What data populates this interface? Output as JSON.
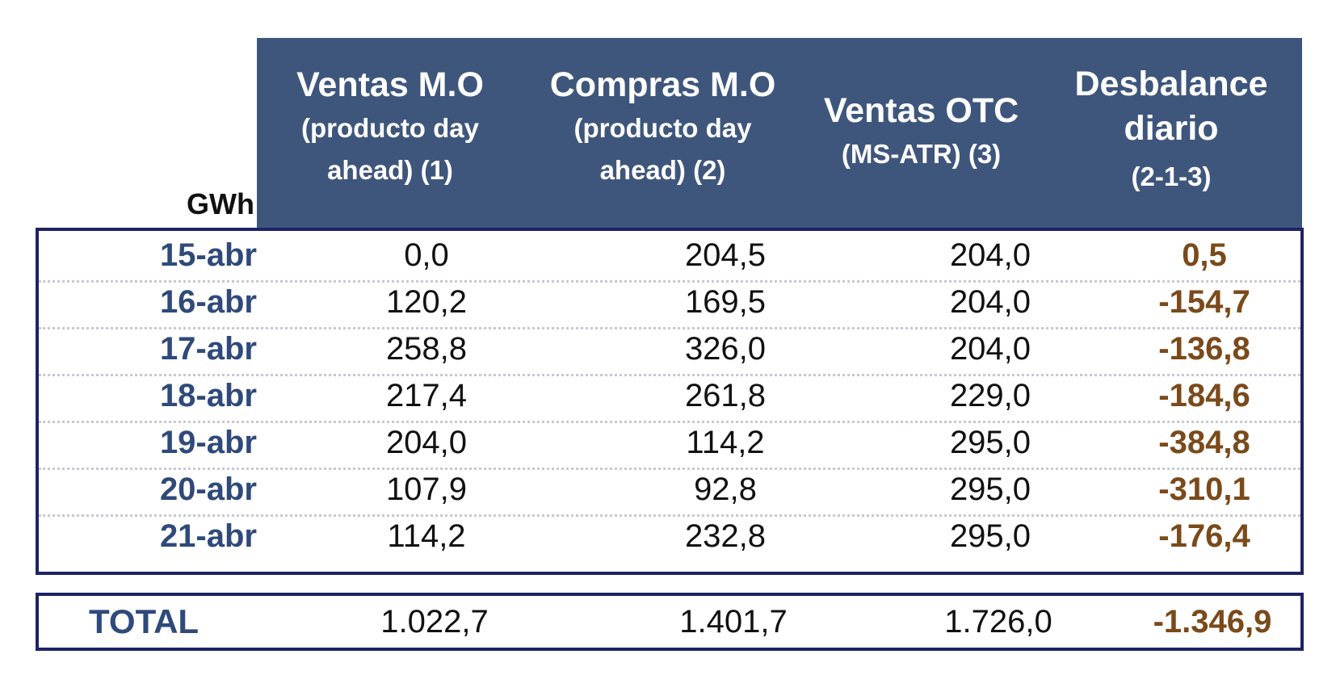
{
  "unit_label": "GWh",
  "headers": [
    {
      "line1": "Ventas M.O",
      "line2": "(producto day",
      "line3": "ahead) (1)"
    },
    {
      "line1": "Compras  M.O",
      "line2": "(producto day",
      "line3": "ahead) (2)"
    },
    {
      "line1": "Ventas OTC",
      "line2": "(MS-ATR) (3)",
      "line3": ""
    },
    {
      "line1": "Desbalance",
      "line2": "diario",
      "line3": "(2-1-3)"
    }
  ],
  "rows": [
    {
      "date": "15-abr",
      "ventas_mo": "0,0",
      "compras_mo": "204,5",
      "ventas_otc": "204,0",
      "desbalance": "0,5"
    },
    {
      "date": "16-abr",
      "ventas_mo": "120,2",
      "compras_mo": "169,5",
      "ventas_otc": "204,0",
      "desbalance": "-154,7"
    },
    {
      "date": "17-abr",
      "ventas_mo": "258,8",
      "compras_mo": "326,0",
      "ventas_otc": "204,0",
      "desbalance": "-136,8"
    },
    {
      "date": "18-abr",
      "ventas_mo": "217,4",
      "compras_mo": "261,8",
      "ventas_otc": "229,0",
      "desbalance": "-184,6"
    },
    {
      "date": "19-abr",
      "ventas_mo": "204,0",
      "compras_mo": "114,2",
      "ventas_otc": "295,0",
      "desbalance": "-384,8"
    },
    {
      "date": "20-abr",
      "ventas_mo": "107,9",
      "compras_mo": "92,8",
      "ventas_otc": "295,0",
      "desbalance": "-310,1"
    },
    {
      "date": "21-abr",
      "ventas_mo": "114,2",
      "compras_mo": "232,8",
      "ventas_otc": "295,0",
      "desbalance": "-176,4"
    }
  ],
  "total": {
    "label": "TOTAL",
    "ventas_mo": "1.022,7",
    "compras_mo": "1.401,7",
    "ventas_otc": "1.726,0",
    "desbalance": "-1.346,9"
  },
  "colors": {
    "header_bg": "#3f567c",
    "border": "#1e2266",
    "date_text": "#2f4a7a",
    "desbalance_text": "#7a4a1a"
  }
}
